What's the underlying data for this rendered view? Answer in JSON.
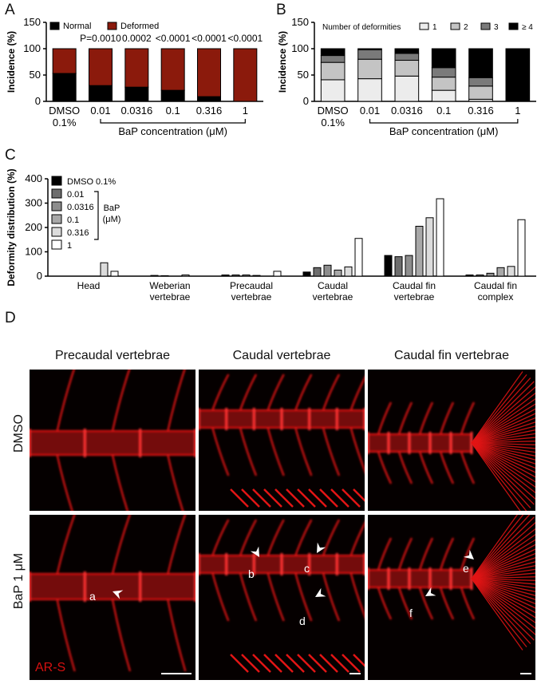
{
  "panels": {
    "A": {
      "letter": "A"
    },
    "B": {
      "letter": "B"
    },
    "C": {
      "letter": "C"
    },
    "D": {
      "letter": "D"
    }
  },
  "colors": {
    "normal": "#000000",
    "deformed": "#8b1a0c",
    "def1": "#ececec",
    "def2": "#c4c4c4",
    "def3": "#7a7a7a",
    "def4": "#000000",
    "bap_series": [
      "#000000",
      "#6e6e6e",
      "#8e8e8e",
      "#a8a8a8",
      "#dcdcdc",
      "#ffffff"
    ],
    "stain": "#d41010"
  },
  "chart_data": [
    {
      "id": "A",
      "type": "bar",
      "stacked": true,
      "categories": [
        "DMSO\n0.1%",
        "0.01",
        "0.0316",
        "0.1",
        "0.316",
        "1"
      ],
      "series": [
        {
          "name": "Normal",
          "values": [
            53,
            30,
            27,
            21,
            9,
            0
          ]
        },
        {
          "name": "Deformed",
          "values": [
            47,
            70,
            73,
            79,
            91,
            100
          ]
        }
      ],
      "ylabel": "Incidence (%)",
      "xlabel": "BaP concentration (μM)",
      "ylim": [
        0,
        150
      ],
      "yticks": [
        "0",
        "50",
        "100",
        "150"
      ],
      "annotations": [
        "P=0.0010",
        "0.0002",
        "<0.0001",
        "<0.0001",
        "<0.0001"
      ],
      "legend": "top-left"
    },
    {
      "id": "B",
      "type": "bar",
      "stacked": true,
      "legend_title": "Number of deformities",
      "categories": [
        "DMSO\n0.1%",
        "0.01",
        "0.0316",
        "0.1",
        "0.316",
        "1"
      ],
      "series": [
        {
          "name": "1",
          "values": [
            41,
            43,
            48,
            21,
            4,
            0
          ]
        },
        {
          "name": "2",
          "values": [
            33,
            37,
            30,
            25,
            25,
            0
          ]
        },
        {
          "name": "3",
          "values": [
            13,
            18,
            13,
            18,
            16,
            0
          ]
        },
        {
          "name": "≥ 4",
          "values": [
            13,
            2,
            9,
            36,
            55,
            100
          ]
        }
      ],
      "ylabel": "Incidence (%)",
      "xlabel": "BaP concentration (μM)",
      "ylim": [
        0,
        150
      ],
      "yticks": [
        "0",
        "50",
        "100",
        "150"
      ],
      "legend": "top"
    },
    {
      "id": "C",
      "type": "bar",
      "categories": [
        "Head",
        "Weberian\nvertebrae",
        "Precaudal\nvertebrae",
        "Caudal\nvertebrae",
        "Caudal fin\nvertebrae",
        "Caudal fin\ncomplex"
      ],
      "series": [
        {
          "name": "DMSO 0.1%",
          "values": [
            0,
            0,
            5,
            17,
            85,
            5
          ]
        },
        {
          "name": "0.01",
          "values": [
            0,
            3,
            5,
            35,
            80,
            5
          ]
        },
        {
          "name": "0.0316",
          "values": [
            0,
            2,
            5,
            45,
            85,
            12
          ]
        },
        {
          "name": "0.1",
          "values": [
            0,
            0,
            3,
            25,
            205,
            35
          ]
        },
        {
          "name": "0.316",
          "values": [
            55,
            5,
            0,
            38,
            240,
            40
          ]
        },
        {
          "name": "1",
          "values": [
            20,
            0,
            20,
            155,
            318,
            232
          ]
        }
      ],
      "ylabel": "Deformity distribution (%)",
      "ylim": [
        0,
        400
      ],
      "yticks": [
        "0",
        "100",
        "200",
        "300",
        "400"
      ],
      "legend_bracket": "BaP\n(μM)",
      "legend": "top-left"
    }
  ],
  "micrographs": {
    "columns": [
      "Precaudal vertebrae",
      "Caudal vertebrae",
      "Caudal fin vertebrae"
    ],
    "rows": [
      "DMSO",
      "BaP 1 μM"
    ],
    "arrow_labels": [
      "a",
      "b",
      "c",
      "d",
      "e",
      "f"
    ],
    "stain": "AR-S"
  }
}
